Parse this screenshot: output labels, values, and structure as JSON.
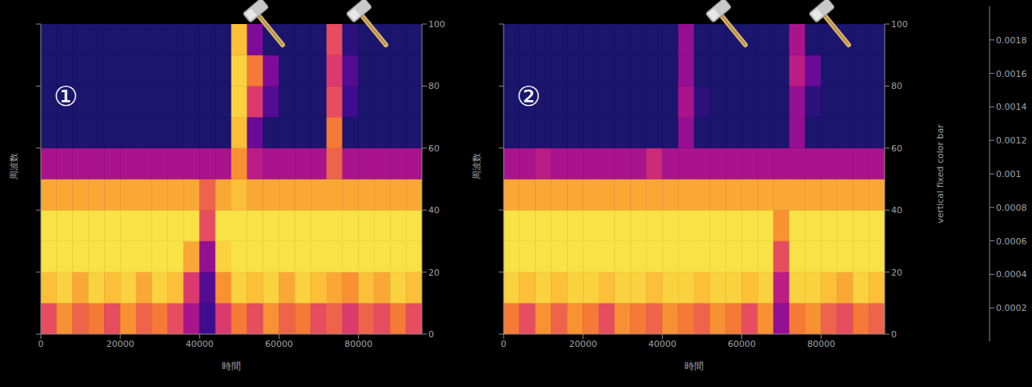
{
  "chart_data": [
    {
      "type": "heatmap",
      "title": "①",
      "x_label": "時間",
      "y_label": "周波数",
      "xlim": [
        0,
        96000
      ],
      "ylim": [
        0,
        100
      ],
      "xticks": [
        0,
        20000,
        40000,
        60000,
        80000
      ],
      "yticks": [
        0,
        20,
        40,
        60,
        80,
        100
      ],
      "x_bins": [
        0,
        4000,
        8000,
        12000,
        16000,
        20000,
        24000,
        28000,
        32000,
        36000,
        40000,
        44000,
        48000,
        52000,
        56000,
        60000,
        64000,
        68000,
        72000,
        76000,
        80000,
        84000,
        88000,
        92000,
        96000
      ],
      "y_bins": [
        0,
        10,
        20,
        30,
        40,
        50,
        60,
        70,
        80,
        90,
        100
      ],
      "values": [
        [
          0.0012,
          0.0015,
          0.0013,
          0.0014,
          0.0012,
          0.0015,
          0.0013,
          0.0014,
          0.0012,
          0.0008,
          0.0003,
          0.0011,
          0.0014,
          0.0012,
          0.0015,
          0.0013,
          0.0014,
          0.0012,
          0.0013,
          0.0011,
          0.0013,
          0.0012,
          0.0014,
          0.0012
        ],
        [
          0.0017,
          0.0018,
          0.0016,
          0.0018,
          0.0017,
          0.0018,
          0.0016,
          0.0018,
          0.0017,
          0.0011,
          0.0004,
          0.0015,
          0.0018,
          0.0017,
          0.0018,
          0.0016,
          0.0018,
          0.0017,
          0.0016,
          0.0015,
          0.0017,
          0.0016,
          0.0018,
          0.0017
        ],
        [
          0.0019,
          0.0019,
          0.0019,
          0.0019,
          0.0019,
          0.0019,
          0.0019,
          0.0019,
          0.0019,
          0.0016,
          0.0007,
          0.0018,
          0.0019,
          0.0019,
          0.0019,
          0.0019,
          0.0019,
          0.0019,
          0.0019,
          0.0019,
          0.0019,
          0.0019,
          0.0019,
          0.0019
        ],
        [
          0.0019,
          0.0019,
          0.0019,
          0.0019,
          0.0019,
          0.0019,
          0.0019,
          0.0019,
          0.0019,
          0.0019,
          0.0012,
          0.0019,
          0.0019,
          0.0019,
          0.0019,
          0.0019,
          0.0019,
          0.0019,
          0.0019,
          0.0019,
          0.0019,
          0.0019,
          0.0019,
          0.0019
        ],
        [
          0.0016,
          0.0016,
          0.0016,
          0.0016,
          0.0016,
          0.0016,
          0.0016,
          0.0016,
          0.0016,
          0.0016,
          0.0013,
          0.0016,
          0.0017,
          0.0016,
          0.0016,
          0.0016,
          0.0016,
          0.0016,
          0.0016,
          0.0016,
          0.0016,
          0.0016,
          0.0016,
          0.0016
        ],
        [
          0.0008,
          0.0008,
          0.0008,
          0.0008,
          0.0008,
          0.0008,
          0.0008,
          0.0008,
          0.0008,
          0.0008,
          0.0008,
          0.0008,
          0.0015,
          0.0009,
          0.0008,
          0.0008,
          0.0008,
          0.0008,
          0.0013,
          0.0008,
          0.0008,
          0.0008,
          0.0008,
          0.0008
        ],
        [
          0.0001,
          0.0001,
          0.0001,
          0.0001,
          0.0001,
          0.0001,
          0.0001,
          0.0001,
          0.0001,
          0.0001,
          0.0001,
          0.0001,
          0.0017,
          0.0005,
          0.0001,
          0.0001,
          0.0001,
          0.0001,
          0.0014,
          0.0001,
          0.0001,
          0.0001,
          0.0001,
          0.0001
        ],
        [
          0.0001,
          0.0001,
          0.0001,
          0.0001,
          0.0001,
          0.0001,
          0.0001,
          0.0001,
          0.0001,
          0.0001,
          0.0001,
          0.0001,
          0.0018,
          0.0011,
          0.0004,
          0.0001,
          0.0001,
          0.0001,
          0.0012,
          0.0003,
          0.0001,
          0.0001,
          0.0001,
          0.0001
        ],
        [
          0.0001,
          0.0001,
          0.0001,
          0.0001,
          0.0001,
          0.0001,
          0.0001,
          0.0001,
          0.0001,
          0.0001,
          0.0001,
          0.0001,
          0.0018,
          0.0014,
          0.0006,
          0.0001,
          0.0001,
          0.0001,
          0.0011,
          0.0004,
          0.0001,
          0.0001,
          0.0001,
          0.0001
        ],
        [
          0.0001,
          0.0001,
          0.0001,
          0.0001,
          0.0001,
          0.0001,
          0.0001,
          0.0001,
          0.0001,
          0.0001,
          0.0001,
          0.0001,
          0.0017,
          0.0006,
          0.0001,
          0.0001,
          0.0001,
          0.0001,
          0.0012,
          0.0002,
          0.0001,
          0.0001,
          0.0001,
          0.0001
        ]
      ]
    },
    {
      "type": "heatmap",
      "title": "②",
      "x_label": "時間",
      "y_label": "周波数",
      "xlim": [
        0,
        96000
      ],
      "ylim": [
        0,
        100
      ],
      "xticks": [
        0,
        20000,
        40000,
        60000,
        80000
      ],
      "yticks": [
        0,
        20,
        40,
        60,
        80,
        100
      ],
      "x_bins": [
        0,
        4000,
        8000,
        12000,
        16000,
        20000,
        24000,
        28000,
        32000,
        36000,
        40000,
        44000,
        48000,
        52000,
        56000,
        60000,
        64000,
        68000,
        72000,
        76000,
        80000,
        84000,
        88000,
        92000,
        96000
      ],
      "y_bins": [
        0,
        10,
        20,
        30,
        40,
        50,
        60,
        70,
        80,
        90,
        100
      ],
      "values": [
        [
          0.0014,
          0.0012,
          0.0015,
          0.0013,
          0.0015,
          0.0014,
          0.0012,
          0.0015,
          0.0014,
          0.0013,
          0.0015,
          0.0014,
          0.0013,
          0.0015,
          0.0014,
          0.0012,
          0.0015,
          0.0007,
          0.0014,
          0.0015,
          0.0013,
          0.0012,
          0.0014,
          0.0013
        ],
        [
          0.0018,
          0.0017,
          0.0018,
          0.0017,
          0.0018,
          0.0018,
          0.0017,
          0.0018,
          0.0018,
          0.0017,
          0.0018,
          0.0018,
          0.0017,
          0.0018,
          0.0018,
          0.0017,
          0.0018,
          0.0009,
          0.0018,
          0.0018,
          0.0017,
          0.0016,
          0.0018,
          0.0017
        ],
        [
          0.0019,
          0.0019,
          0.0019,
          0.0019,
          0.0019,
          0.0019,
          0.0019,
          0.0019,
          0.0019,
          0.0019,
          0.0019,
          0.0019,
          0.0019,
          0.0019,
          0.0019,
          0.0019,
          0.0019,
          0.0012,
          0.0019,
          0.0019,
          0.0019,
          0.0019,
          0.0019,
          0.0019
        ],
        [
          0.0019,
          0.0019,
          0.0019,
          0.0019,
          0.0019,
          0.0019,
          0.0019,
          0.0019,
          0.0019,
          0.0019,
          0.0019,
          0.0019,
          0.0019,
          0.0019,
          0.0019,
          0.0019,
          0.0019,
          0.0015,
          0.0019,
          0.0019,
          0.0019,
          0.0019,
          0.0019,
          0.0019
        ],
        [
          0.0016,
          0.0016,
          0.0016,
          0.0016,
          0.0016,
          0.0016,
          0.0016,
          0.0016,
          0.0016,
          0.0016,
          0.0016,
          0.0016,
          0.0016,
          0.0016,
          0.0016,
          0.0016,
          0.0016,
          0.0016,
          0.0016,
          0.0016,
          0.0016,
          0.0016,
          0.0016,
          0.0016
        ],
        [
          0.0008,
          0.0008,
          0.0009,
          0.0008,
          0.0008,
          0.0008,
          0.0008,
          0.0008,
          0.0008,
          0.001,
          0.0008,
          0.0008,
          0.0008,
          0.0008,
          0.0008,
          0.0008,
          0.0008,
          0.0008,
          0.0008,
          0.0008,
          0.0008,
          0.0008,
          0.0008,
          0.0008
        ],
        [
          0.0001,
          0.0001,
          0.0001,
          0.0001,
          0.0001,
          0.0001,
          0.0001,
          0.0001,
          0.0001,
          0.0001,
          0.0001,
          0.0007,
          0.0001,
          0.0001,
          0.0001,
          0.0001,
          0.0001,
          0.0001,
          0.0007,
          0.0001,
          0.0001,
          0.0001,
          0.0001,
          0.0001
        ],
        [
          0.0001,
          0.0001,
          0.0001,
          0.0001,
          0.0001,
          0.0001,
          0.0001,
          0.0001,
          0.0001,
          0.0001,
          0.0001,
          0.0008,
          0.0002,
          0.0001,
          0.0001,
          0.0001,
          0.0001,
          0.0001,
          0.0007,
          0.0002,
          0.0001,
          0.0001,
          0.0001,
          0.0001
        ],
        [
          0.0001,
          0.0001,
          0.0001,
          0.0001,
          0.0001,
          0.0001,
          0.0001,
          0.0001,
          0.0001,
          0.0001,
          0.0001,
          0.0007,
          0.0001,
          0.0001,
          0.0001,
          0.0001,
          0.0001,
          0.0001,
          0.0009,
          0.0005,
          0.0001,
          0.0001,
          0.0001,
          0.0001
        ],
        [
          0.0001,
          0.0001,
          0.0001,
          0.0001,
          0.0001,
          0.0001,
          0.0001,
          0.0001,
          0.0001,
          0.0001,
          0.0001,
          0.0007,
          0.0001,
          0.0001,
          0.0001,
          0.0001,
          0.0001,
          0.0001,
          0.0008,
          0.0001,
          0.0001,
          0.0001,
          0.0001,
          0.0001
        ]
      ]
    }
  ],
  "colorbar": {
    "label": "vertical fixed color bar",
    "range": [
      0,
      0.002
    ],
    "ticks": [
      0.0002,
      0.0004,
      0.0006,
      0.0008,
      0.001,
      0.0012,
      0.0014,
      0.0016,
      0.0018
    ]
  }
}
